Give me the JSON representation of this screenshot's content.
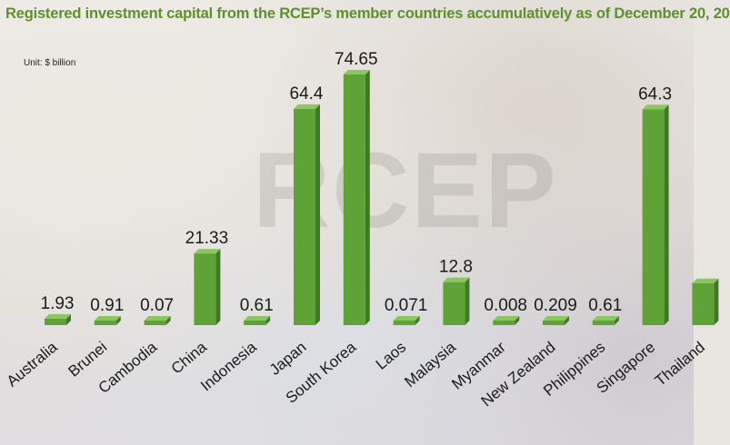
{
  "chart_data": {
    "type": "bar",
    "title": "Registered investment capital from the RCEP’s member countries accumulatively as of December 20, 20",
    "unit_label": "Unit: $ billion",
    "watermark": "RCEP",
    "categories": [
      "Australia",
      "Brunei",
      "Cambodia",
      "China",
      "Indonesia",
      "Japan",
      "South Korea",
      "Laos",
      "Malaysia",
      "Myanmar",
      "New Zealand",
      "Philippines",
      "Singapore",
      "Thailand"
    ],
    "values": [
      1.93,
      0.91,
      0.07,
      21.33,
      0.61,
      64.4,
      74.65,
      0.071,
      12.8,
      0.008,
      0.209,
      0.61,
      64.3,
      12.5
    ],
    "value_labels": [
      "1.93",
      "0.91",
      "0.07",
      "21.33",
      "0.61",
      "64.4",
      "74.65",
      "0.071",
      "12.8",
      "0.008",
      "0.209",
      "0.61",
      "64.3",
      ""
    ],
    "xlabel": "",
    "ylabel": "",
    "ylim": [
      0,
      74.65
    ],
    "grid": false,
    "colors": {
      "bar_front": "#5fa338",
      "bar_side": "#3f7a22",
      "bar_top": "#8cc663",
      "title": "#5f8f2e"
    }
  }
}
